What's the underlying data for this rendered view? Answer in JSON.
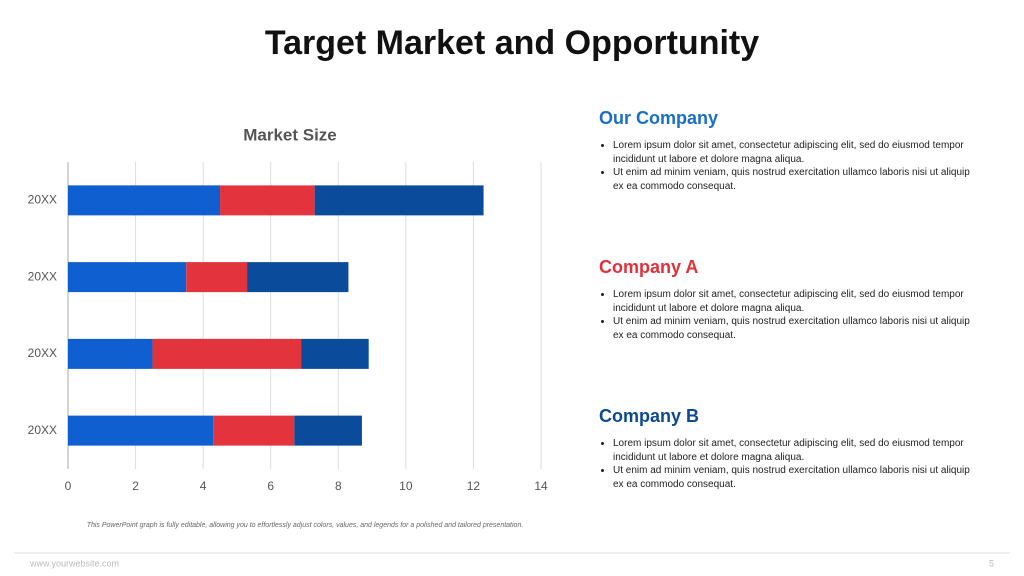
{
  "title": "Target Market and Opportunity",
  "chart_data": {
    "type": "stacked-bar-horizontal",
    "title": "Market Size",
    "categories": [
      "20XX",
      "20XX",
      "20XX",
      "20XX"
    ],
    "series": [
      {
        "color": "#0f5fd0",
        "values": [
          4.5,
          3.5,
          2.5,
          4.3
        ]
      },
      {
        "color": "#e3333c",
        "values": [
          2.8,
          1.8,
          4.4,
          2.4
        ]
      },
      {
        "color": "#0a4b9b",
        "values": [
          5.0,
          3.0,
          2.0,
          2.0
        ]
      }
    ],
    "xlim": [
      0,
      14
    ],
    "xticks": [
      0,
      2,
      4,
      6,
      8,
      10,
      12,
      14
    ],
    "grid": true,
    "caption": "This PowerPoint graph is fully editable, allowing you to effortlessly adjust colors, values, and legends for a polished and tailored presentation."
  },
  "sections": [
    {
      "heading": "Our Company",
      "color": "#1a6fc4",
      "bullets": [
        "Lorem ipsum dolor sit amet, consectetur adipiscing elit, sed do eiusmod tempor incididunt ut labore et dolore magna aliqua.",
        "Ut enim ad minim veniam, quis nostrud exercitation ullamco laboris nisi ut aliquip ex ea commodo consequat."
      ]
    },
    {
      "heading": "Company A",
      "color": "#e0313b",
      "bullets": [
        "Lorem ipsum dolor sit amet, consectetur adipiscing elit, sed do eiusmod tempor incididunt ut labore et dolore magna aliqua.",
        "Ut enim ad minim veniam, quis nostrud exercitation ullamco laboris nisi ut aliquip ex ea commodo consequat."
      ]
    },
    {
      "heading": "Company B",
      "color": "#0d4a8c",
      "bullets": [
        "Lorem ipsum dolor sit amet, consectetur adipiscing elit, sed do eiusmod tempor incididunt ut labore et dolore magna aliqua.",
        "Ut enim ad minim veniam, quis nostrud exercitation ullamco laboris nisi ut aliquip ex ea commodo consequat."
      ]
    }
  ],
  "footer": {
    "website": "www.yourwebsite.com",
    "page": "5"
  }
}
